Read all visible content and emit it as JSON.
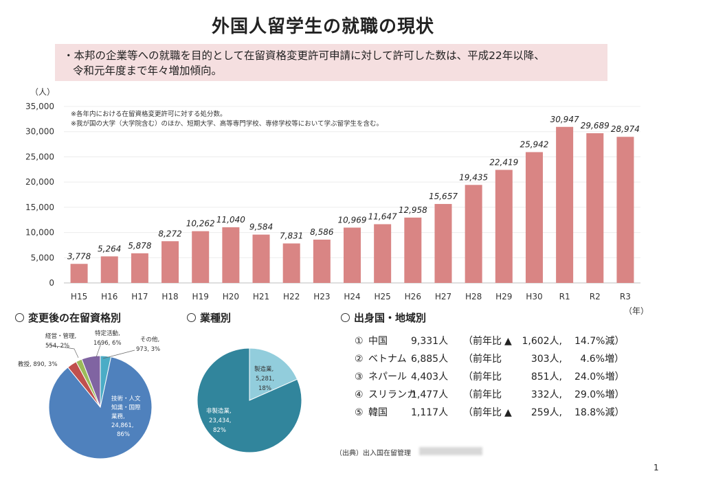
{
  "title": "外国人留学生の就職の現状",
  "summary": {
    "line1": "・本邦の企業等への就職を目的として在留資格変更許可申請に対して許可した数は、平成22年以降、",
    "line2": "令和元年度まで年々増加傾向。"
  },
  "chart_data": [
    {
      "type": "bar",
      "ylabel": "（人）",
      "xlabel": "（年）",
      "ylim": [
        0,
        35000
      ],
      "yticks": [
        "35,000",
        "30,000",
        "25,000",
        "20,000",
        "15,000",
        "10,000",
        "5,000",
        "0"
      ],
      "categories": [
        "H15",
        "H16",
        "H17",
        "H18",
        "H19",
        "H20",
        "H21",
        "H22",
        "H23",
        "H24",
        "H25",
        "H26",
        "H27",
        "H28",
        "H29",
        "H30",
        "R1",
        "R2",
        "R3"
      ],
      "values": [
        3778,
        5264,
        5878,
        8272,
        10262,
        11040,
        9584,
        7831,
        8586,
        10969,
        11647,
        12958,
        15657,
        19435,
        22419,
        25942,
        30947,
        29689,
        28974
      ],
      "labels": [
        "3,778",
        "5,264",
        "5,878",
        "8,272",
        "10,262",
        "11,040",
        "9,584",
        "7,831",
        "8,586",
        "10,969",
        "11,647",
        "12,958",
        "15,657",
        "19,435",
        "22,419",
        "25,942",
        "30,947",
        "29,689",
        "28,974"
      ],
      "notes": [
        "※各年内における在留資格変更許可に対する処分数。",
        "※我が国の大学（大学院含む）のほか、短期大学、高等専門学校、専修学校等において学ぶ留学生を含む。"
      ],
      "bar_color": "#d98584",
      "grid": true
    },
    {
      "type": "pie",
      "title": "変更後の在留資格別",
      "slices": [
        {
          "name": "技術・人文知識・国際業務",
          "value": 24861,
          "pct": 86,
          "l1": "技術・人文",
          "l2": "知識・国際",
          "l3": "業務,",
          "l4": "24,861,",
          "l5": "86%",
          "color": "#4f81bd"
        },
        {
          "name": "教授",
          "value": 890,
          "pct": 3,
          "label": "教授, 890, 3%",
          "color": "#c0504d"
        },
        {
          "name": "経営・管理",
          "value": 554,
          "pct": 2,
          "l1": "経営・管理,",
          "l2": "554, 2%",
          "color": "#9bbb59"
        },
        {
          "name": "特定活動",
          "value": 1696,
          "pct": 6,
          "l1": "特定活動,",
          "l2": "1696, 6%",
          "color": "#8064a2"
        },
        {
          "name": "その他",
          "value": 973,
          "pct": 3,
          "l1": "その他,",
          "l2": "973, 3%",
          "color": "#4bacc6"
        }
      ]
    },
    {
      "type": "pie",
      "title": "業種別",
      "slices": [
        {
          "name": "製造業",
          "value": 5281,
          "pct": 18,
          "l1": "製造業,",
          "l2": "5,281,",
          "l3": "18%",
          "color": "#92cddc"
        },
        {
          "name": "非製造業",
          "value": 23434,
          "pct": 82,
          "l1": "非製造業,",
          "l2": "23,434,",
          "l3": "82%",
          "color": "#31859c"
        }
      ]
    }
  ],
  "origin": {
    "title": "出身国・地域別",
    "rows": [
      {
        "rank": "①",
        "country": "中国",
        "count": "9,331人",
        "prefix": "（前年比",
        "mark": "▲",
        "change": "1,602人,",
        "pct": "14.7%減）"
      },
      {
        "rank": "②",
        "country": "ベトナム",
        "count": "6,885人",
        "prefix": "（前年比",
        "mark": "",
        "change": "303人,",
        "pct": "4.6%増）"
      },
      {
        "rank": "③",
        "country": "ネパール",
        "count": "4,403人",
        "prefix": "（前年比",
        "mark": "",
        "change": "851人,",
        "pct": "24.0%増）"
      },
      {
        "rank": "④",
        "country": "スリランカ",
        "count": "1,477人",
        "prefix": "（前年比",
        "mark": "",
        "change": "332人,",
        "pct": "29.0%増）"
      },
      {
        "rank": "⑤",
        "country": "韓国",
        "count": "1,117人",
        "prefix": "（前年比",
        "mark": "▲",
        "change": "259人,",
        "pct": "18.8%減）"
      }
    ]
  },
  "source": "（出典）出入国在留管理",
  "page_number": "1"
}
